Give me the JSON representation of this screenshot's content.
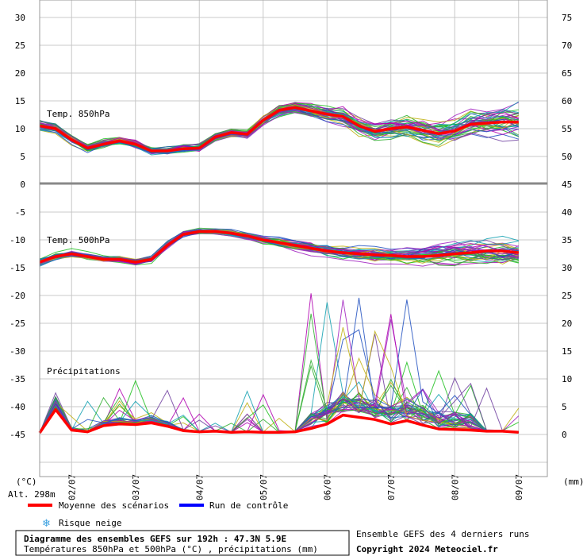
{
  "chart_data": {
    "type": "line",
    "dates": [
      "02/07",
      "03/07",
      "04/07",
      "05/07",
      "06/07",
      "07/07",
      "08/07",
      "09/07"
    ],
    "left_axis": {
      "top_ticks": [
        "30",
        "25",
        "20",
        "15",
        "10",
        "5",
        "0"
      ],
      "bottom_ticks": [
        "-5",
        "-10",
        "-15",
        "-20",
        "-25",
        "-30",
        "-35",
        "-40",
        "-45"
      ],
      "unit": "(°C)"
    },
    "right_axis": {
      "top_ticks": [
        "75",
        "70",
        "65",
        "60",
        "55",
        "50"
      ],
      "bottom_ticks": [
        "45",
        "40",
        "35",
        "30",
        "25",
        "20",
        "15",
        "10",
        "5",
        "0"
      ],
      "unit": "(mm)"
    },
    "panels": {
      "t850": {
        "label": "Temp. 850hPa",
        "ylim": [
          0,
          30
        ],
        "mean": [
          [
            0,
            10.5
          ],
          [
            0.25,
            10
          ],
          [
            0.5,
            8
          ],
          [
            0.75,
            6.5
          ],
          [
            1,
            7.2
          ],
          [
            1.25,
            7.8
          ],
          [
            1.5,
            7.2
          ],
          [
            1.75,
            6
          ],
          [
            2,
            6
          ],
          [
            2.25,
            6.4
          ],
          [
            2.5,
            6.5
          ],
          [
            2.75,
            8.5
          ],
          [
            3,
            9.3
          ],
          [
            3.25,
            9
          ],
          [
            3.5,
            11.5
          ],
          [
            3.75,
            13.3
          ],
          [
            4,
            13.8
          ],
          [
            4.25,
            13.2
          ],
          [
            4.5,
            12.6
          ],
          [
            4.75,
            12.2
          ],
          [
            5,
            10.5
          ],
          [
            5.25,
            9.5
          ],
          [
            5.5,
            10
          ],
          [
            5.75,
            10.3
          ],
          [
            6,
            9.7
          ],
          [
            6.25,
            9.1
          ],
          [
            6.5,
            9.6
          ],
          [
            6.75,
            10.8
          ],
          [
            7,
            11
          ],
          [
            7.25,
            11.2
          ],
          [
            7.5,
            11.2
          ]
        ]
      },
      "t500": {
        "label": "Temp. 500hPa",
        "ylim": [
          -45,
          0
        ],
        "mean": [
          [
            0,
            -14
          ],
          [
            0.25,
            -13
          ],
          [
            0.5,
            -12.5
          ],
          [
            0.75,
            -13
          ],
          [
            1,
            -13.5
          ],
          [
            1.25,
            -13.5
          ],
          [
            1.5,
            -14
          ],
          [
            1.75,
            -13.5
          ],
          [
            2,
            -11
          ],
          [
            2.25,
            -9
          ],
          [
            2.5,
            -8.5
          ],
          [
            2.75,
            -8.5
          ],
          [
            3,
            -8.8
          ],
          [
            3.25,
            -9.3
          ],
          [
            3.5,
            -10
          ],
          [
            3.75,
            -10.5
          ],
          [
            4,
            -11
          ],
          [
            4.25,
            -11.5
          ],
          [
            4.5,
            -12
          ],
          [
            4.75,
            -12.3
          ],
          [
            5,
            -12.5
          ],
          [
            5.25,
            -12.7
          ],
          [
            5.5,
            -12.8
          ],
          [
            5.75,
            -13
          ],
          [
            6,
            -13
          ],
          [
            6.25,
            -12.8
          ],
          [
            6.5,
            -12.5
          ],
          [
            6.75,
            -12.3
          ],
          [
            7,
            -12
          ],
          [
            7.25,
            -12
          ],
          [
            7.5,
            -12.3
          ]
        ]
      },
      "precip": {
        "label": "Précipitations",
        "ylim": [
          0,
          45
        ],
        "mean": [
          [
            0,
            0
          ],
          [
            0.25,
            4.2
          ],
          [
            0.5,
            0.5
          ],
          [
            0.75,
            0.2
          ],
          [
            1,
            1.3
          ],
          [
            1.25,
            1.6
          ],
          [
            1.5,
            1.5
          ],
          [
            1.75,
            1.8
          ],
          [
            2,
            1.2
          ],
          [
            2.25,
            0.4
          ],
          [
            2.5,
            0.2
          ],
          [
            2.75,
            0.3
          ],
          [
            3,
            0.1
          ],
          [
            3.25,
            0.2
          ],
          [
            3.5,
            0.1
          ],
          [
            3.75,
            0.1
          ],
          [
            4,
            0.2
          ],
          [
            4.25,
            0.8
          ],
          [
            4.5,
            1.6
          ],
          [
            4.75,
            3.2
          ],
          [
            5,
            2.8
          ],
          [
            5.25,
            2.4
          ],
          [
            5.5,
            1.6
          ],
          [
            5.75,
            2.2
          ],
          [
            6,
            1.4
          ],
          [
            6.25,
            0.7
          ],
          [
            6.5,
            0.6
          ],
          [
            6.75,
            0.5
          ],
          [
            7,
            0.3
          ],
          [
            7.25,
            0.3
          ],
          [
            7.5,
            0.1
          ]
        ]
      }
    },
    "series": [
      {
        "name": "Moyenne des scénarios",
        "color": "#ff0000"
      },
      {
        "name": "Run de contrôle",
        "color": "#0000ff"
      }
    ],
    "member_colors": [
      "#1fbf1f",
      "#2eae2e",
      "#a020c0",
      "#b000b0",
      "#c0b010",
      "#10a0b0",
      "#2050c0",
      "#7040a0"
    ]
  },
  "footer": {
    "alt": "Alt. 298m",
    "legend_mean": "Moyenne des scénarios",
    "legend_control": "Run de contrôle",
    "legend_snow": "Risque neige",
    "title_line1": "Diagramme des ensembles GEFS sur 192h : 47.3N 5.9E",
    "title_line2": "Températures 850hPa et 500hPa (°C) , précipitations (mm)",
    "right_line1": "Ensemble GEFS des 4 derniers runs",
    "copyright": "Copyright 2024 Meteociel.fr"
  }
}
